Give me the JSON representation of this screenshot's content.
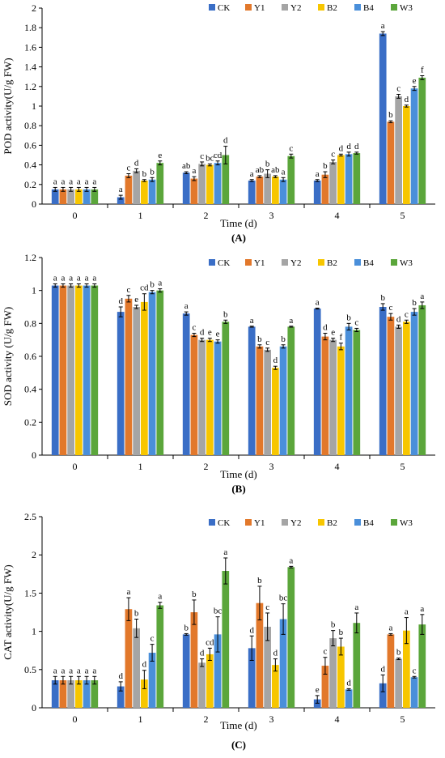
{
  "chart_data": [
    {
      "type": "bar",
      "panel_label": "(A)",
      "xlabel": "Time (d)",
      "ylabel": "POD activity(U/g FW)",
      "ylim": [
        0,
        2
      ],
      "yticks": [
        "0",
        "0.2",
        "0.4",
        "0.6",
        "0.8",
        "1",
        "1.2",
        "1.4",
        "1.6",
        "1.8",
        "2"
      ],
      "categories": [
        "0",
        "1",
        "2",
        "3",
        "4",
        "5"
      ],
      "legend_position": "top-right",
      "series": [
        {
          "name": "CK",
          "color": "#3A6EC6",
          "values": [
            0.15,
            0.07,
            0.32,
            0.24,
            0.24,
            1.74
          ],
          "errors": [
            0.02,
            0.02,
            0.01,
            0.01,
            0.01,
            0.02
          ],
          "letters": [
            "a",
            "a",
            "ab",
            "a",
            "a",
            "a"
          ]
        },
        {
          "name": "Y1",
          "color": "#E2782B",
          "values": [
            0.15,
            0.29,
            0.26,
            0.28,
            0.3,
            0.84
          ],
          "errors": [
            0.02,
            0.02,
            0.02,
            0.01,
            0.03,
            0.01
          ],
          "letters": [
            "a",
            "c",
            "a",
            "ab",
            "b",
            "b"
          ]
        },
        {
          "name": "Y2",
          "color": "#A5A5A5",
          "values": [
            0.15,
            0.34,
            0.41,
            0.31,
            0.43,
            1.1
          ],
          "errors": [
            0.02,
            0.02,
            0.02,
            0.04,
            0.02,
            0.02
          ],
          "letters": [
            "a",
            "d",
            "c",
            "b",
            "c",
            "c"
          ]
        },
        {
          "name": "B2",
          "color": "#F7C600",
          "values": [
            0.15,
            0.24,
            0.4,
            0.28,
            0.5,
            1.0
          ],
          "errors": [
            0.02,
            0.01,
            0.01,
            0.01,
            0.01,
            0.01
          ],
          "letters": [
            "a",
            "b",
            "bc",
            "ab",
            "d",
            "d"
          ]
        },
        {
          "name": "B4",
          "color": "#4A8FDA",
          "values": [
            0.15,
            0.25,
            0.42,
            0.25,
            0.51,
            1.18
          ],
          "errors": [
            0.02,
            0.02,
            0.02,
            0.02,
            0.02,
            0.02
          ],
          "letters": [
            "a",
            "b",
            "cd",
            "a",
            "d",
            "e"
          ]
        },
        {
          "name": "W3",
          "color": "#5BA63B",
          "values": [
            0.15,
            0.42,
            0.5,
            0.49,
            0.52,
            1.29
          ],
          "errors": [
            0.02,
            0.02,
            0.09,
            0.02,
            0.01,
            0.02
          ],
          "letters": [
            "a",
            "e",
            "d",
            "c",
            "d",
            "f"
          ]
        }
      ]
    },
    {
      "type": "bar",
      "panel_label": "(B)",
      "xlabel": "Time (d)",
      "ylabel": "SOD activity (U/g FW)",
      "ylim": [
        0,
        1.2
      ],
      "yticks": [
        "0",
        "0.2",
        "0.4",
        "0.6",
        "0.8",
        "1",
        "1.2"
      ],
      "categories": [
        "0",
        "1",
        "2",
        "3",
        "4",
        "5"
      ],
      "legend_position": "top-right",
      "series": [
        {
          "name": "CK",
          "color": "#3A6EC6",
          "values": [
            1.03,
            0.87,
            0.86,
            0.78,
            0.89,
            0.9
          ],
          "errors": [
            0.01,
            0.03,
            0.01,
            0.003,
            0.003,
            0.02
          ],
          "letters": [
            "a",
            "d",
            "a",
            "a",
            "a",
            "b"
          ]
        },
        {
          "name": "Y1",
          "color": "#E2782B",
          "values": [
            1.03,
            0.95,
            0.73,
            0.66,
            0.72,
            0.84
          ],
          "errors": [
            0.01,
            0.02,
            0.01,
            0.01,
            0.02,
            0.02
          ],
          "letters": [
            "a",
            "c",
            "c",
            "b",
            "d",
            "c"
          ]
        },
        {
          "name": "Y2",
          "color": "#A5A5A5",
          "values": [
            1.03,
            0.9,
            0.7,
            0.64,
            0.7,
            0.78
          ],
          "errors": [
            0.01,
            0.01,
            0.01,
            0.01,
            0.01,
            0.01
          ],
          "letters": [
            "a",
            "e",
            "d",
            "c",
            "e",
            "d"
          ]
        },
        {
          "name": "B2",
          "color": "#F7C600",
          "values": [
            1.03,
            0.93,
            0.7,
            0.53,
            0.66,
            0.81
          ],
          "errors": [
            0.01,
            0.05,
            0.01,
            0.01,
            0.02,
            0.01
          ],
          "letters": [
            "a",
            "cd",
            "e",
            "d",
            "f",
            "c"
          ]
        },
        {
          "name": "B4",
          "color": "#4A8FDA",
          "values": [
            1.03,
            0.99,
            0.69,
            0.66,
            0.78,
            0.87
          ],
          "errors": [
            0.01,
            0.01,
            0.01,
            0.01,
            0.02,
            0.02
          ],
          "letters": [
            "a",
            "b",
            "e",
            "b",
            "b",
            "b"
          ]
        },
        {
          "name": "W3",
          "color": "#5BA63B",
          "values": [
            1.03,
            1.0,
            0.81,
            0.78,
            0.76,
            0.91
          ],
          "errors": [
            0.01,
            0.01,
            0.01,
            0.003,
            0.01,
            0.02
          ],
          "letters": [
            "a",
            "a",
            "b",
            "a",
            "c",
            "a"
          ]
        }
      ]
    },
    {
      "type": "bar",
      "panel_label": "(C)",
      "xlabel": "Time (d)",
      "ylabel": "CAT activity(U/g FW)",
      "ylim": [
        0,
        2.5
      ],
      "yticks": [
        "0",
        "0.5",
        "1",
        "1.5",
        "2",
        "2.5"
      ],
      "categories": [
        "0",
        "1",
        "2",
        "3",
        "4",
        "5"
      ],
      "legend_position": "top-right",
      "series": [
        {
          "name": "CK",
          "color": "#3A6EC6",
          "values": [
            0.36,
            0.28,
            0.96,
            0.78,
            0.11,
            0.32
          ],
          "errors": [
            0.05,
            0.06,
            0.01,
            0.16,
            0.05,
            0.11
          ],
          "letters": [
            "a",
            "d",
            "b",
            "d",
            "e",
            "d"
          ]
        },
        {
          "name": "Y1",
          "color": "#E2782B",
          "values": [
            0.36,
            1.29,
            1.25,
            1.37,
            0.55,
            0.96
          ],
          "errors": [
            0.05,
            0.15,
            0.16,
            0.22,
            0.11,
            0.01
          ],
          "letters": [
            "a",
            "a",
            "b",
            "b",
            "c",
            "a"
          ]
        },
        {
          "name": "Y2",
          "color": "#A5A5A5",
          "values": [
            0.36,
            1.04,
            0.59,
            1.06,
            0.91,
            0.64
          ],
          "errors": [
            0.05,
            0.12,
            0.05,
            0.18,
            0.1,
            0.01
          ],
          "letters": [
            "a",
            "b",
            "d",
            "c",
            "b",
            "b"
          ]
        },
        {
          "name": "B2",
          "color": "#F7C600",
          "values": [
            0.36,
            0.37,
            0.7,
            0.56,
            0.8,
            1.01
          ],
          "errors": [
            0.05,
            0.12,
            0.08,
            0.08,
            0.11,
            0.17
          ],
          "letters": [
            "a",
            "d",
            "cd",
            "d",
            "b",
            "a"
          ]
        },
        {
          "name": "B4",
          "color": "#4A8FDA",
          "values": [
            0.36,
            0.72,
            0.96,
            1.16,
            0.24,
            0.4
          ],
          "errors": [
            0.05,
            0.11,
            0.23,
            0.2,
            0.01,
            0.01
          ],
          "letters": [
            "a",
            "c",
            "bc",
            "bc",
            "d",
            "c"
          ]
        },
        {
          "name": "W3",
          "color": "#5BA63B",
          "values": [
            0.36,
            1.34,
            1.79,
            1.84,
            1.11,
            1.09
          ],
          "errors": [
            0.05,
            0.04,
            0.17,
            0.01,
            0.13,
            0.13
          ],
          "letters": [
            "a",
            "a",
            "a",
            "a",
            "a",
            "a"
          ]
        }
      ]
    }
  ]
}
